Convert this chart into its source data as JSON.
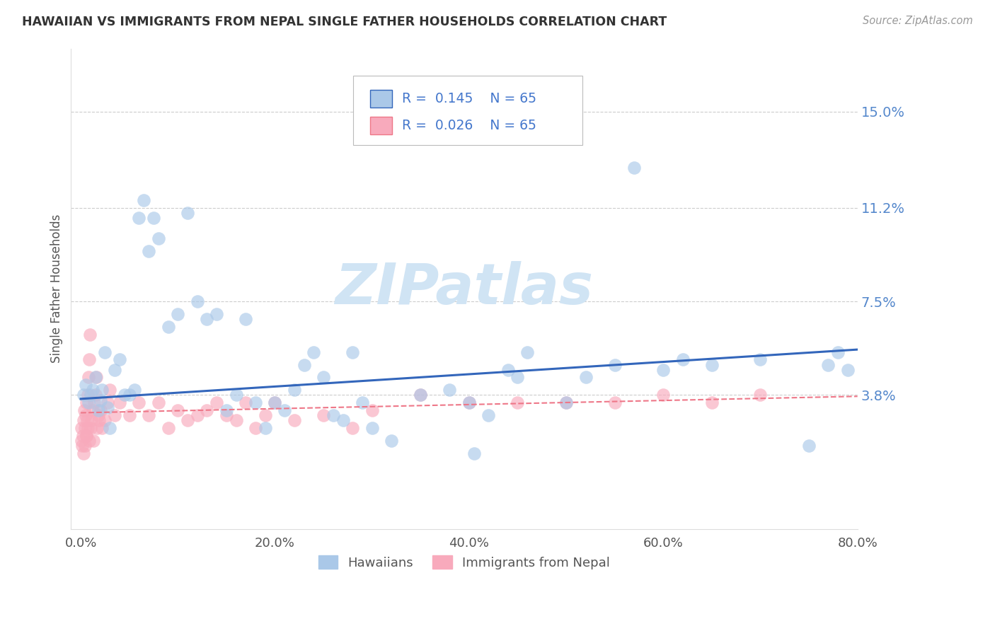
{
  "title": "HAWAIIAN VS IMMIGRANTS FROM NEPAL SINGLE FATHER HOUSEHOLDS CORRELATION CHART",
  "source": "Source: ZipAtlas.com",
  "ylabel": "Single Father Households",
  "xlim": [
    0.0,
    80.0
  ],
  "ylim_low": -1.5,
  "ylim_high": 17.5,
  "ytick_vals": [
    3.8,
    7.5,
    11.2,
    15.0
  ],
  "ytick_labels": [
    "3.8%",
    "7.5%",
    "11.2%",
    "15.0%"
  ],
  "xtick_vals": [
    0.0,
    20.0,
    40.0,
    60.0,
    80.0
  ],
  "xtick_labels": [
    "0.0%",
    "20.0%",
    "40.0%",
    "60.0%",
    "80.0%"
  ],
  "grid_color": "#cccccc",
  "background_color": "#ffffff",
  "hawaiians_color": "#aac8e8",
  "nepal_color": "#f8aabc",
  "hawaiians_line_color": "#3366bb",
  "nepal_line_color": "#ee7788",
  "watermark_text": "ZIPatlas",
  "watermark_color": "#d0e4f4",
  "legend_r1": "R =  0.145",
  "legend_n1": "N = 65",
  "legend_r2": "R =  0.026",
  "legend_n2": "N = 65",
  "label_hawaiians": "Hawaiians",
  "label_nepal": "Immigrants from Nepal",
  "hawaiians_x": [
    0.3,
    0.5,
    0.8,
    1.0,
    1.2,
    1.5,
    1.8,
    2.0,
    2.2,
    2.5,
    2.8,
    3.0,
    3.5,
    4.0,
    4.5,
    5.0,
    5.5,
    6.0,
    6.5,
    7.0,
    7.5,
    8.0,
    9.0,
    10.0,
    11.0,
    12.0,
    13.0,
    14.0,
    15.0,
    16.0,
    17.0,
    18.0,
    19.0,
    20.0,
    21.0,
    22.0,
    23.0,
    24.0,
    25.0,
    26.0,
    27.0,
    28.0,
    30.0,
    32.0,
    35.0,
    38.0,
    40.0,
    42.0,
    45.0,
    50.0,
    52.0,
    55.0,
    57.0,
    60.0,
    62.0,
    65.0,
    70.0,
    75.0,
    77.0,
    78.0,
    79.0,
    40.5,
    44.0,
    46.0,
    29.0
  ],
  "hawaiians_y": [
    3.8,
    4.2,
    3.5,
    3.8,
    4.0,
    4.5,
    3.2,
    3.6,
    4.0,
    5.5,
    3.3,
    2.5,
    4.8,
    5.2,
    3.8,
    3.8,
    4.0,
    10.8,
    11.5,
    9.5,
    10.8,
    10.0,
    6.5,
    7.0,
    11.0,
    7.5,
    6.8,
    7.0,
    3.2,
    3.8,
    6.8,
    3.5,
    2.5,
    3.5,
    3.2,
    4.0,
    5.0,
    5.5,
    4.5,
    3.0,
    2.8,
    5.5,
    2.5,
    2.0,
    3.8,
    4.0,
    3.5,
    3.0,
    4.5,
    3.5,
    4.5,
    5.0,
    12.8,
    4.8,
    5.2,
    5.0,
    5.2,
    1.8,
    5.0,
    5.5,
    4.8,
    1.5,
    4.8,
    5.5,
    3.5
  ],
  "nepal_x": [
    0.05,
    0.1,
    0.15,
    0.2,
    0.25,
    0.3,
    0.35,
    0.4,
    0.45,
    0.5,
    0.55,
    0.6,
    0.65,
    0.7,
    0.75,
    0.8,
    0.85,
    0.9,
    0.95,
    1.0,
    1.1,
    1.2,
    1.3,
    1.4,
    1.5,
    1.6,
    1.7,
    1.8,
    1.9,
    2.0,
    2.2,
    2.5,
    2.8,
    3.0,
    3.5,
    4.0,
    5.0,
    6.0,
    7.0,
    8.0,
    9.0,
    10.0,
    11.0,
    12.0,
    13.0,
    14.0,
    15.0,
    16.0,
    17.0,
    18.0,
    19.0,
    20.0,
    22.0,
    25.0,
    28.0,
    30.0,
    35.0,
    40.0,
    45.0,
    50.0,
    55.0,
    60.0,
    65.0,
    70.0,
    0.6
  ],
  "nepal_y": [
    2.5,
    2.0,
    1.8,
    2.2,
    1.5,
    2.8,
    3.2,
    2.5,
    1.8,
    3.0,
    2.2,
    3.5,
    2.8,
    3.8,
    2.5,
    4.5,
    2.0,
    5.2,
    6.2,
    2.5,
    2.8,
    3.2,
    2.0,
    3.5,
    3.8,
    4.5,
    2.5,
    3.0,
    2.8,
    3.2,
    2.5,
    2.8,
    3.5,
    4.0,
    3.0,
    3.5,
    3.0,
    3.5,
    3.0,
    3.5,
    2.5,
    3.2,
    2.8,
    3.0,
    3.2,
    3.5,
    3.0,
    2.8,
    3.5,
    2.5,
    3.0,
    3.5,
    2.8,
    3.0,
    2.5,
    3.2,
    3.8,
    3.5,
    3.5,
    3.5,
    3.5,
    3.8,
    3.5,
    3.8,
    2.2
  ],
  "trend_h_x0": 0.0,
  "trend_h_y0": 3.65,
  "trend_h_x1": 80.0,
  "trend_h_y1": 5.6,
  "trend_n_x0": 0.0,
  "trend_n_y0": 3.1,
  "trend_n_x1": 80.0,
  "trend_n_y1": 3.75
}
